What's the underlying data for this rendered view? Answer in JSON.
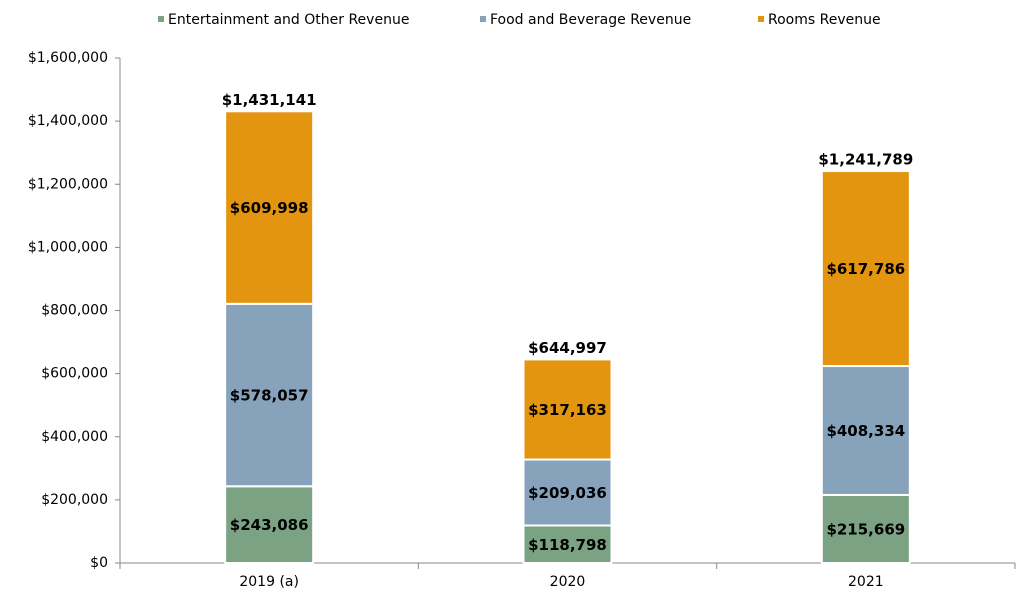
{
  "chart_data": {
    "type": "stacked_bar",
    "categories": [
      "2019 (a)",
      "2020",
      "2021"
    ],
    "series": [
      {
        "name": "Entertainment and Other Revenue",
        "color": "#7aa283",
        "values": [
          243086,
          118798,
          215669
        ],
        "value_labels": [
          "$243,086",
          "$118,798",
          "$215,669"
        ]
      },
      {
        "name": "Food and Beverage Revenue",
        "color": "#87a2bb",
        "values": [
          578057,
          209036,
          408334
        ],
        "value_labels": [
          "$578,057",
          "$209,036",
          "$408,334"
        ]
      },
      {
        "name": "Rooms Revenue",
        "color": "#e3950f",
        "values": [
          609998,
          317163,
          617786
        ],
        "value_labels": [
          "$609,998",
          "$317,163",
          "$617,786"
        ]
      }
    ],
    "totals": [
      1431141,
      644997,
      1241789
    ],
    "total_labels": [
      "$1,431,141",
      "$644,997",
      "$1,241,789"
    ],
    "ylim": [
      0,
      1600000
    ],
    "yticks": [
      {
        "value": 0,
        "label": "$0"
      },
      {
        "value": 200000,
        "label": "$200,000"
      },
      {
        "value": 400000,
        "label": "$400,000"
      },
      {
        "value": 600000,
        "label": "$600,000"
      },
      {
        "value": 800000,
        "label": "$800,000"
      },
      {
        "value": 1000000,
        "label": "$1,000,000"
      },
      {
        "value": 1200000,
        "label": "$1,200,000"
      },
      {
        "value": 1400000,
        "label": "$1,400,000"
      },
      {
        "value": 1600000,
        "label": "$1,600,000"
      }
    ],
    "legend": "top"
  }
}
